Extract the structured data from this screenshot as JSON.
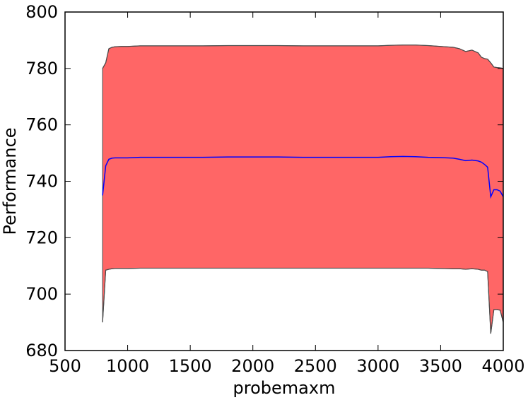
{
  "chart_data": {
    "type": "area",
    "title": "",
    "xlabel": "probemaxm",
    "ylabel": "Performance",
    "xlim": [
      500,
      4000
    ],
    "ylim": [
      680,
      800
    ],
    "xticks": [
      500,
      1000,
      1500,
      2000,
      2500,
      3000,
      3500,
      4000
    ],
    "yticks": [
      680,
      700,
      720,
      740,
      760,
      780,
      800
    ],
    "grid": false,
    "legend": "none",
    "x": [
      800,
      825,
      850,
      875,
      900,
      950,
      1000,
      1100,
      1200,
      1400,
      1600,
      1800,
      2000,
      2200,
      2400,
      2600,
      2800,
      3000,
      3100,
      3200,
      3300,
      3400,
      3500,
      3600,
      3650,
      3700,
      3750,
      3800,
      3825,
      3850,
      3875,
      3900,
      3925,
      3950,
      3975,
      4000
    ],
    "series": [
      {
        "role": "upper",
        "color": "#4a4a4a",
        "values": [
          780,
          782,
          787,
          787.5,
          787.7,
          787.8,
          787.8,
          788.0,
          788.0,
          788.0,
          788.0,
          788.1,
          788.1,
          788.1,
          788.0,
          788.0,
          788.0,
          788.0,
          788.2,
          788.3,
          788.3,
          788.1,
          787.8,
          787.5,
          787.0,
          786.0,
          786.5,
          785.5,
          784,
          783.5,
          783.3,
          782,
          780.5,
          780.3,
          780.2,
          780
        ]
      },
      {
        "role": "mean",
        "color": "#0000ff",
        "values": [
          735,
          745.5,
          747.8,
          748.2,
          748.3,
          748.3,
          748.3,
          748.5,
          748.5,
          748.5,
          748.5,
          748.6,
          748.6,
          748.6,
          748.5,
          748.5,
          748.5,
          748.5,
          748.7,
          748.8,
          748.7,
          748.5,
          748.4,
          748.2,
          747.8,
          747.3,
          747.5,
          747.2,
          746.8,
          746.0,
          745.0,
          734.5,
          737.0,
          737.0,
          736.5,
          734.5
        ]
      },
      {
        "role": "lower",
        "color": "#4a4a4a",
        "values": [
          690,
          708.5,
          708.8,
          709.0,
          709.1,
          709.1,
          709.1,
          709.2,
          709.2,
          709.2,
          709.2,
          709.2,
          709.2,
          709.2,
          709.2,
          709.2,
          709.2,
          709.2,
          709.2,
          709.2,
          709.2,
          709.2,
          709.1,
          709.0,
          709.0,
          708.8,
          709.0,
          708.8,
          708.5,
          708.5,
          708,
          686,
          694.5,
          694.5,
          694.3,
          690
        ]
      }
    ],
    "fill_color": "#ff6666"
  }
}
